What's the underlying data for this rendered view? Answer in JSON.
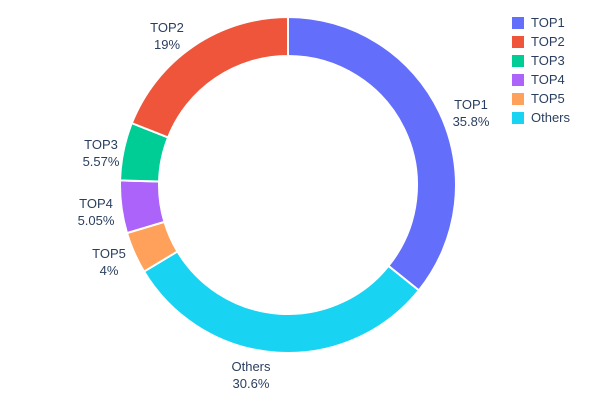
{
  "chart_data": {
    "type": "pie",
    "subtype": "donut",
    "title": "",
    "categories": [
      "TOP1",
      "TOP2",
      "TOP3",
      "TOP4",
      "TOP5",
      "Others"
    ],
    "values": [
      35.8,
      19,
      5.57,
      5.05,
      4,
      30.6
    ],
    "percent_labels": [
      "35.8%",
      "19%",
      "5.57%",
      "5.05%",
      "4%",
      "30.6%"
    ],
    "colors": [
      "#636efa",
      "#ef553b",
      "#00cc96",
      "#ab63fa",
      "#ffa15a",
      "#19d3f3"
    ],
    "hole": 0.77,
    "rotation": "start-top",
    "direction": "clockwise",
    "slice_order": [
      0,
      5,
      4,
      3,
      2,
      1
    ],
    "slice_border_color": "#ffffff",
    "label_color": "#2a3f5f",
    "legend_position": "right",
    "legend_entries": [
      "TOP1",
      "TOP2",
      "TOP3",
      "TOP4",
      "TOP5",
      "Others"
    ]
  }
}
